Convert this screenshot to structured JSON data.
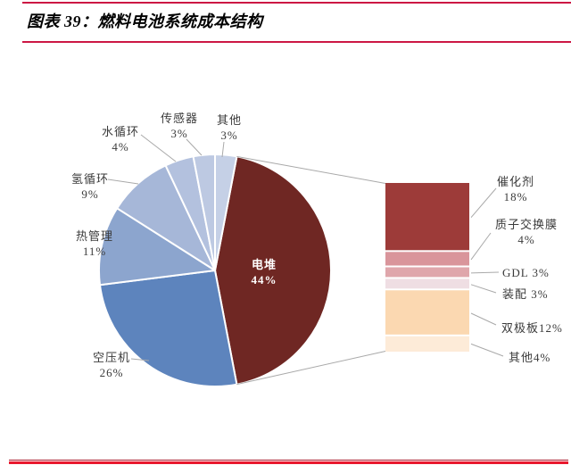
{
  "header": {
    "title": "图表 39：燃料电池系统成本结构",
    "rule_color": "#CC1744"
  },
  "footer": {
    "rule_color": "#E8182D",
    "rule_color_dark": "#A61527"
  },
  "chart_data": [
    {
      "type": "pie",
      "title": "燃料电池系统成本结构",
      "categories": [
        "电堆",
        "空压机",
        "热管理",
        "氢循环",
        "水循环",
        "传感器",
        "其他"
      ],
      "keys": [
        "stack",
        "air-compressor",
        "thermal-mgmt",
        "hydrogen-loop",
        "water-loop",
        "sensor",
        "other"
      ],
      "values": [
        44,
        26,
        11,
        9,
        4,
        3,
        3
      ],
      "pct_labels": [
        "44%",
        "26%",
        "11%",
        "9%",
        "4%",
        "3%",
        "3%"
      ],
      "colors": [
        "#6F2723",
        "#5D84BD",
        "#8CA5CE",
        "#A6B7D8",
        "#B3C1DE",
        "#BDC9E2",
        "#C5D0E6"
      ],
      "start_angle_deg": 10.8,
      "direction": "clockwise",
      "grid": false,
      "legend": "none",
      "inside_label_slice": "电堆"
    },
    {
      "type": "bar",
      "breakdown_of": "电堆",
      "orientation": "vertical-stacked",
      "categories": [
        "催化剂",
        "质子交换膜",
        "GDL",
        "装配",
        "双极板",
        "其他"
      ],
      "keys": [
        "catalyst",
        "pem-membrane",
        "gdl",
        "assembly",
        "bipolar-plate",
        "other"
      ],
      "values": [
        18,
        4,
        3,
        3,
        12,
        4
      ],
      "pct_labels": [
        "18%",
        "4%",
        "3%",
        "3%",
        "12%",
        "4%"
      ],
      "inline_labels": [
        "GDL 3%",
        "装配 3%",
        "双极板12%",
        "其他4%"
      ],
      "colors": [
        "#9D3B39",
        "#D9959B",
        "#DFA6AB",
        "#EFDEE3",
        "#FBD8B1",
        "#FDEBD8"
      ],
      "leader_line_color": "#A9A9A9"
    }
  ]
}
